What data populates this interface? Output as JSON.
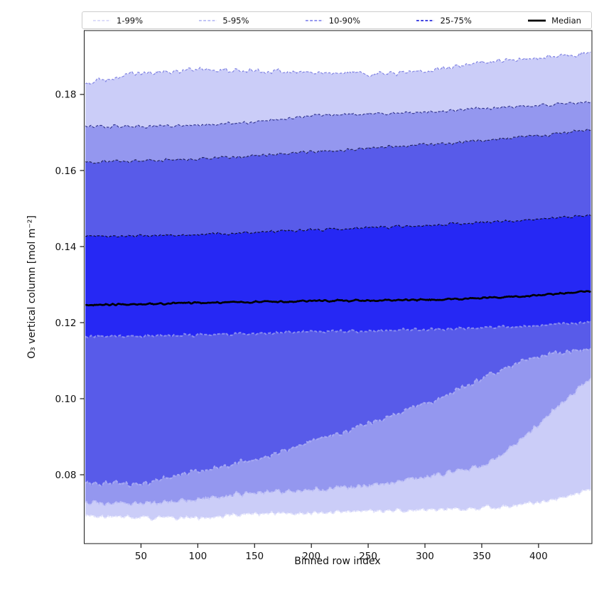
{
  "figure": {
    "background": "#ffffff",
    "xlabel": "Binned row index",
    "ylabel": "O₃ vertical column [mol m⁻²]"
  },
  "legend": {
    "position": "top",
    "items": [
      {
        "label": "1-99%",
        "color": "#c6c8f5",
        "style": "dashed",
        "width": 1.2
      },
      {
        "label": "5-95%",
        "color": "#9aa0f1",
        "style": "dashed",
        "width": 1.2
      },
      {
        "label": "10-90%",
        "color": "#7276ec",
        "style": "dashed",
        "width": 1.4
      },
      {
        "label": "25-75%",
        "color": "#4347e2",
        "style": "dashed",
        "width": 2.0
      },
      {
        "label": "Median",
        "color": "#000000",
        "style": "solid",
        "width": 2.8
      }
    ]
  },
  "chart_data": {
    "type": "area",
    "subtype": "percentile-band-fan",
    "title": "",
    "xlabel": "Binned row index",
    "ylabel": "O₃ vertical column [mol m⁻²]",
    "grid": false,
    "legend_position": "top",
    "xlim": [
      0,
      447
    ],
    "ylim": [
      0.0619,
      0.1968
    ],
    "xticks": [
      50,
      100,
      150,
      200,
      250,
      300,
      350,
      400
    ],
    "xtick_labels": [
      "50",
      "100",
      "150",
      "200",
      "250",
      "300",
      "350",
      "400"
    ],
    "yticks": [
      0.08,
      0.1,
      0.12,
      0.14,
      0.16,
      0.18
    ],
    "ytick_labels": [
      "0.08",
      "0.10",
      "0.12",
      "0.14",
      "0.16",
      "0.18"
    ],
    "x_start": 1,
    "x_end": 446,
    "x_samples": [
      1,
      50,
      100,
      150,
      200,
      250,
      300,
      350,
      375,
      400,
      420,
      446
    ],
    "series_values": {
      "p99": [
        0.183,
        0.1856,
        0.1864,
        0.1862,
        0.1859,
        0.1853,
        0.1862,
        0.1884,
        0.189,
        0.1895,
        0.19,
        0.1912
      ],
      "p95": [
        0.1716,
        0.1715,
        0.1718,
        0.1728,
        0.1744,
        0.175,
        0.1753,
        0.1763,
        0.1767,
        0.1771,
        0.1774,
        0.178
      ],
      "p90": [
        0.1622,
        0.1625,
        0.1631,
        0.1638,
        0.1649,
        0.1659,
        0.1668,
        0.1679,
        0.1685,
        0.1691,
        0.1698,
        0.1707
      ],
      "p75": [
        0.1426,
        0.1428,
        0.1432,
        0.1437,
        0.1444,
        0.1449,
        0.1456,
        0.1463,
        0.1467,
        0.1472,
        0.1477,
        0.1482
      ],
      "median": [
        0.1246,
        0.1249,
        0.1252,
        0.1254,
        0.1257,
        0.1258,
        0.126,
        0.1264,
        0.1268,
        0.1272,
        0.1277,
        0.1283
      ],
      "p25": [
        0.1163,
        0.1165,
        0.1168,
        0.1172,
        0.1176,
        0.1179,
        0.1182,
        0.1186,
        0.1189,
        0.1193,
        0.1197,
        0.1202
      ],
      "p10": [
        0.0778,
        0.0776,
        0.081,
        0.0838,
        0.0888,
        0.0933,
        0.0985,
        0.1052,
        0.1085,
        0.1112,
        0.1122,
        0.113
      ],
      "p05": [
        0.0729,
        0.0722,
        0.0736,
        0.0752,
        0.076,
        0.0772,
        0.0796,
        0.0822,
        0.087,
        0.093,
        0.0989,
        0.1056
      ],
      "p01": [
        0.0692,
        0.0686,
        0.0688,
        0.0697,
        0.07,
        0.0703,
        0.0707,
        0.0712,
        0.0719,
        0.0727,
        0.0739,
        0.0761
      ]
    },
    "bands": [
      {
        "name": "1-99%",
        "hi": "p99",
        "lo": "p01",
        "fill": "#cbcdf8",
        "edge_hi": "#7f82e2",
        "edge_lo": "#e3e4fc"
      },
      {
        "name": "5-95%",
        "hi": "p95",
        "lo": "p05",
        "fill": "#9497ef",
        "edge_hi": "#34378f",
        "edge_lo": "#babcf6"
      },
      {
        "name": "10-90%",
        "hi": "p90",
        "lo": "p10",
        "fill": "#585be9",
        "edge_hi": "#24265c",
        "edge_lo": "#abadf4"
      },
      {
        "name": "25-75%",
        "hi": "p75",
        "lo": "p25",
        "fill": "#2628f4",
        "edge_hi": "#0d0e2e",
        "edge_lo": "#8f92f0"
      }
    ],
    "median_color": "#000000",
    "spine_color": "#1a1a1a"
  }
}
